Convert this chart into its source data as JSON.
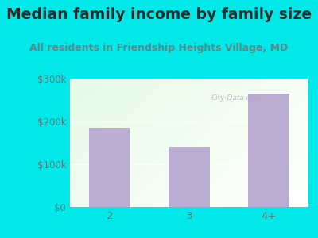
{
  "title": "Median family income by family size",
  "subtitle": "All residents in Friendship Heights Village, MD",
  "categories": [
    "2",
    "3",
    "4+"
  ],
  "values": [
    185000,
    140000,
    265000
  ],
  "bar_color": "#bbadd1",
  "outer_bg": "#00e8e8",
  "title_color": "#2a2a2a",
  "subtitle_color": "#5a8a8a",
  "tick_label_color": "#5a7a7a",
  "ylim": [
    0,
    300000
  ],
  "yticks": [
    0,
    100000,
    200000,
    300000
  ],
  "ytick_labels": [
    "$0",
    "$100k",
    "$200k",
    "$300k"
  ],
  "title_fontsize": 13.5,
  "subtitle_fontsize": 9,
  "watermark": "City-Data.com"
}
